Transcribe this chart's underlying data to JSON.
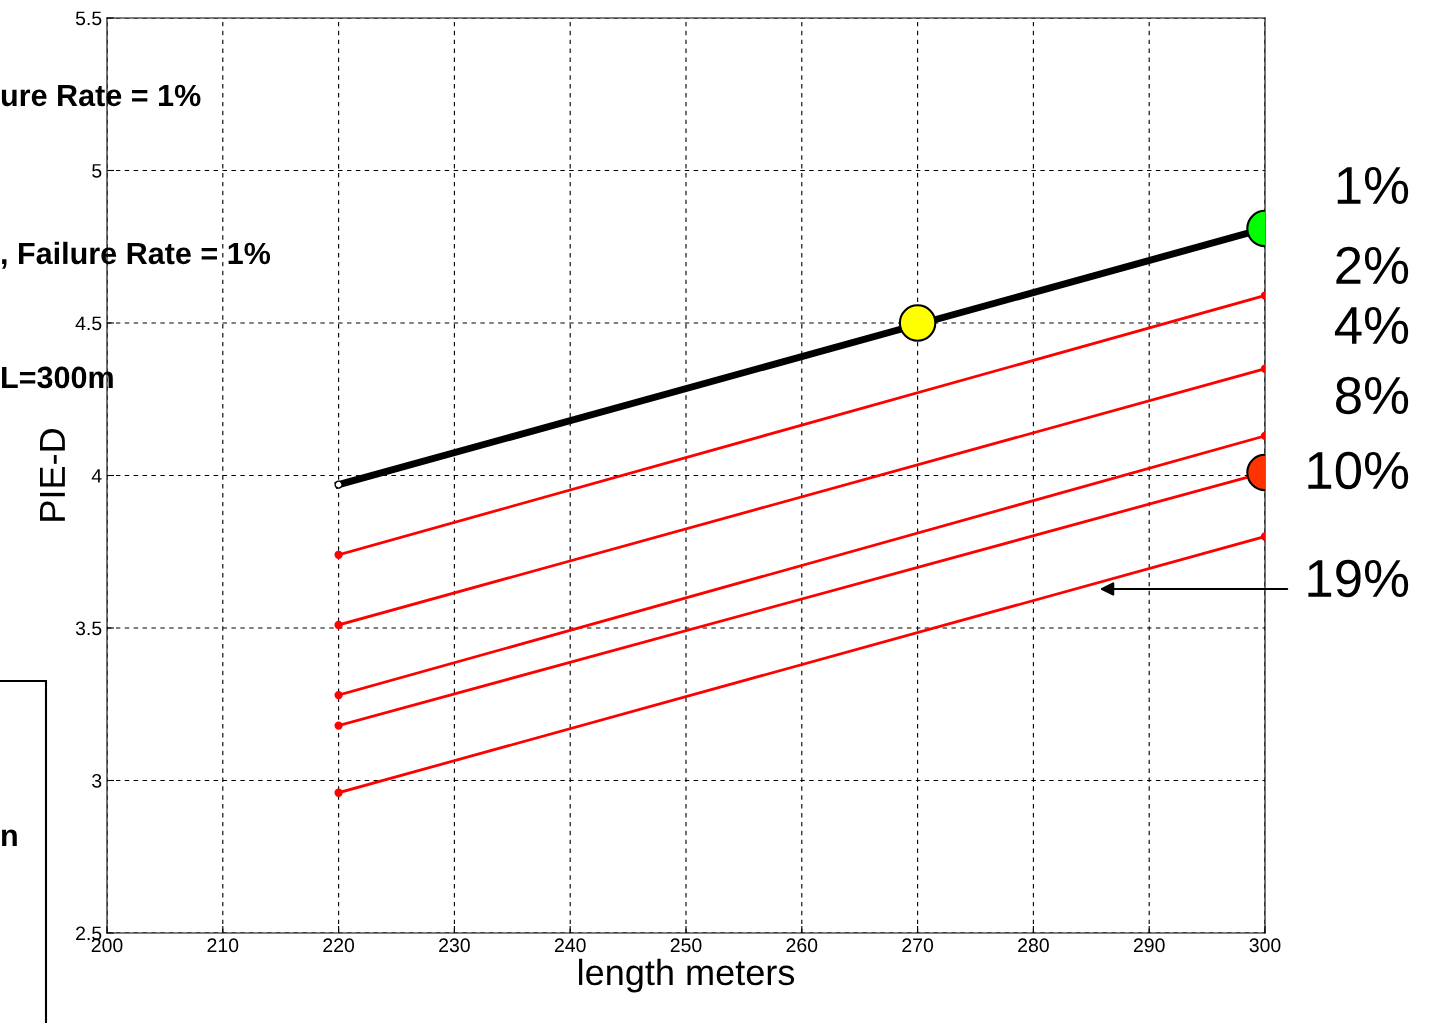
{
  "chart_data": {
    "type": "line",
    "xlabel": "length meters",
    "ylabel": "PIE-D",
    "xlim": [
      200,
      300
    ],
    "ylim": [
      2.5,
      5.5
    ],
    "xticks": [
      200,
      210,
      220,
      230,
      240,
      250,
      260,
      270,
      280,
      290,
      300
    ],
    "yticks": [
      2.5,
      3,
      3.5,
      4,
      4.5,
      5,
      5.5
    ],
    "grid": true,
    "line_style": "solid",
    "marker": "circle",
    "series": [
      {
        "color": "#000000",
        "x": [
          220,
          300
        ],
        "values": [
          3.97,
          4.81
        ]
      },
      {
        "color": "#ff0000",
        "x": [
          220,
          300
        ],
        "values": [
          3.74,
          4.59
        ]
      },
      {
        "color": "#ff0000",
        "x": [
          220,
          300
        ],
        "values": [
          3.51,
          4.35
        ]
      },
      {
        "color": "#ff0000",
        "x": [
          220,
          300
        ],
        "values": [
          3.28,
          4.13
        ]
      },
      {
        "color": "#ff0000",
        "x": [
          220,
          300
        ],
        "values": [
          3.18,
          4.01
        ]
      },
      {
        "color": "#ff0000",
        "x": [
          220,
          300
        ],
        "values": [
          2.96,
          3.8
        ]
      },
      {
        "type": "scatter",
        "x": [
          270,
          300,
          300
        ],
        "values": [
          4.5,
          4.81,
          4.01
        ],
        "colors": [
          "#ffff00",
          "#00ff00",
          "#ff3300"
        ]
      }
    ],
    "annotations": [
      "ure Rate = 1%",
      ", Failure Rate = 1%",
      "L=300m",
      "n",
      "1%",
      "2%",
      "4%",
      "8%",
      "10%",
      "19%"
    ]
  }
}
